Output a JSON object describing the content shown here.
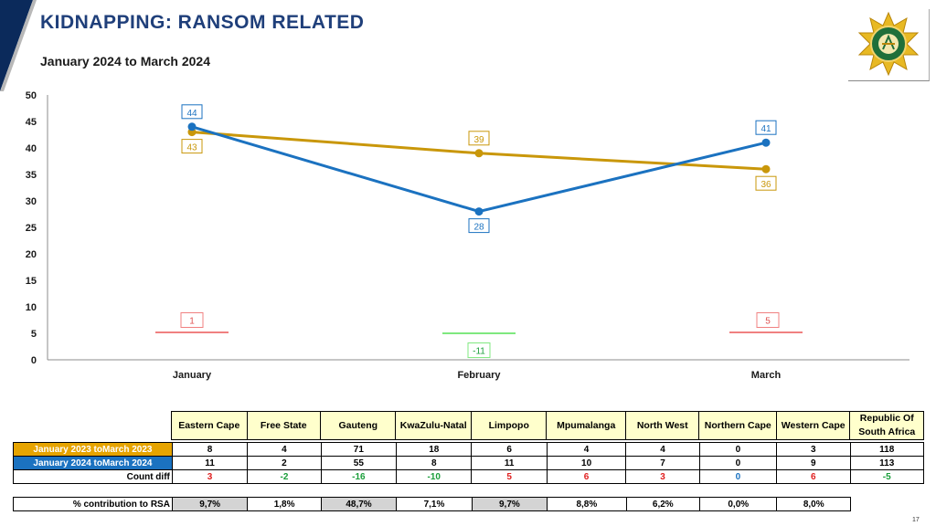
{
  "header": {
    "title": "KIDNAPPING: RANSOM RELATED",
    "subtitle": "January 2024 to March 2024",
    "page_number": "17"
  },
  "colors": {
    "series_2023": "#c9970a",
    "series_2024": "#1b72c0",
    "diff_positive": "#f08080",
    "diff_negative": "#7fe87f",
    "title": "#1f3f7a",
    "navy": "#0b2a5b"
  },
  "chart_data": {
    "type": "line",
    "categories": [
      "January",
      "February",
      "March"
    ],
    "series": [
      {
        "name": "January 2023 to March 2023",
        "values": [
          43,
          39,
          36
        ]
      },
      {
        "name": "January 2024 to March 2024",
        "values": [
          44,
          28,
          41
        ]
      }
    ],
    "diff": [
      1,
      -11,
      5
    ],
    "ylim": [
      0,
      50
    ],
    "yticks": [
      0,
      5,
      10,
      15,
      20,
      25,
      30,
      35,
      40,
      45,
      50
    ],
    "xlabel": "",
    "ylabel": "",
    "grid": false
  },
  "table": {
    "provinces": [
      "Eastern Cape",
      "Free State",
      "Gauteng",
      "KwaZulu-Natal",
      "Limpopo",
      "Mpumalanga",
      "North West",
      "Northern Cape",
      "Western Cape"
    ],
    "total_header": "Republic Of South Africa",
    "rows": [
      {
        "label": "January 2023 toMarch 2023",
        "values": [
          "8",
          "4",
          "71",
          "18",
          "6",
          "4",
          "4",
          "0",
          "3",
          "118"
        ]
      },
      {
        "label": "January 2024 toMarch 2024",
        "values": [
          "11",
          "2",
          "55",
          "8",
          "11",
          "10",
          "7",
          "0",
          "9",
          "113"
        ]
      },
      {
        "label": "Count diff",
        "values": [
          "3",
          "-2",
          "-16",
          "-10",
          "5",
          "6",
          "3",
          "0",
          "6",
          "-5"
        ]
      }
    ],
    "contribution": {
      "label": "% contribution to RSA",
      "values": [
        "9,7%",
        "1,8%",
        "48,7%",
        "7,1%",
        "9,7%",
        "8,8%",
        "6,2%",
        "0,0%",
        "8,0%"
      ]
    }
  }
}
